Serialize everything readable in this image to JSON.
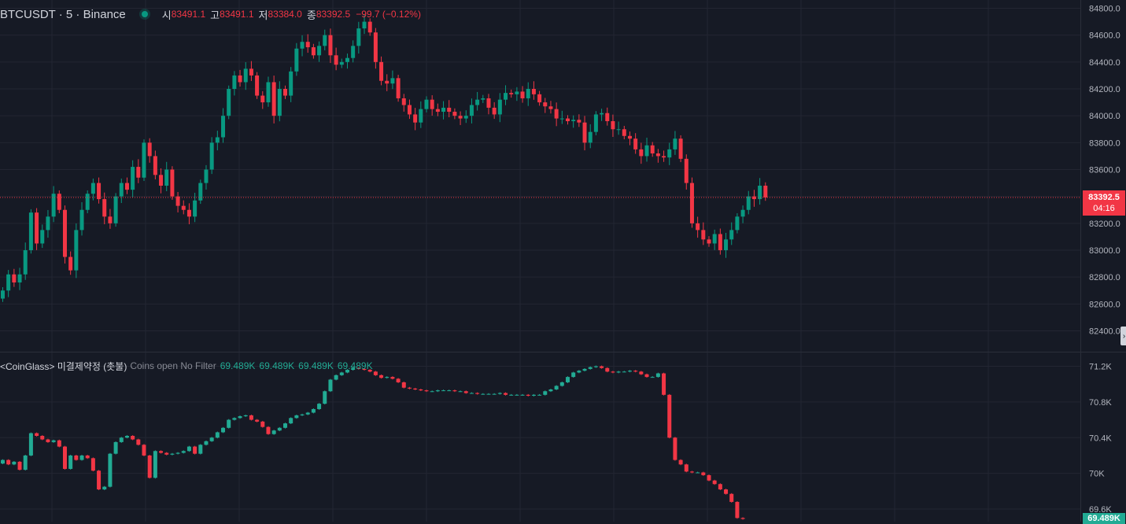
{
  "legend": {
    "symbol": "BTCUSDT · 5 · Binance",
    "open_label": "시",
    "open": "83491.1",
    "high_label": "고",
    "high": "83491.1",
    "low_label": "저",
    "low": "83384.0",
    "close_label": "종",
    "close": "83392.5",
    "change": "−99.7 (−0.12%)"
  },
  "indicator": {
    "name": "<CoinGlass> 미결제약정 (촛불)",
    "description": "Coins open No Filter",
    "values": [
      "69.489K",
      "69.489K",
      "69.489K",
      "69.489K"
    ]
  },
  "price_axis": {
    "ticks": [
      "84800.0",
      "84600.0",
      "84400.0",
      "84200.0",
      "84000.0",
      "83800.0",
      "83600.0",
      "83400.0",
      "83200.0",
      "83000.0",
      "82800.0",
      "82600.0",
      "82400.0"
    ],
    "current_price": "83392.5",
    "countdown": "04:16"
  },
  "oi_axis": {
    "ticks": [
      "71.2K",
      "70.8K",
      "70.4K",
      "70K",
      "69.6K"
    ],
    "current_value": "69.489K"
  },
  "colors": {
    "up": "#089981",
    "down": "#f23645",
    "background": "#161a25",
    "grid": "#232632",
    "oi_up": "#22ab94"
  },
  "chart_data": [
    {
      "type": "candlestick",
      "title": "BTCUSDT · 5 · Binance",
      "ylim": [
        82300,
        84850
      ],
      "yticks": [
        84800,
        84600,
        84400,
        84200,
        84000,
        83800,
        83600,
        83400,
        83200,
        83000,
        82800,
        82600,
        82400
      ],
      "last_price": 83392.5,
      "closes": [
        82700,
        82820,
        82760,
        82820,
        83000,
        83280,
        83050,
        83150,
        83250,
        83420,
        83300,
        82950,
        82850,
        83150,
        83300,
        83420,
        83500,
        83380,
        83250,
        83200,
        83400,
        83500,
        83450,
        83620,
        83540,
        83800,
        83700,
        83560,
        83480,
        83600,
        83400,
        83330,
        83300,
        83250,
        83370,
        83500,
        83600,
        83800,
        83840,
        84000,
        84200,
        84300,
        84250,
        84350,
        84300,
        84150,
        84100,
        84250,
        84000,
        84200,
        84150,
        84330,
        84500,
        84550,
        84510,
        84450,
        84520,
        84600,
        84450,
        84380,
        84400,
        84430,
        84520,
        84650,
        84700,
        84620,
        84400,
        84260,
        84240,
        84280,
        84130,
        84080,
        84010,
        83950,
        84050,
        84120,
        84050,
        84030,
        84060,
        84030,
        84000,
        83980,
        84000,
        84080,
        84120,
        84130,
        84060,
        84010,
        84120,
        84170,
        84160,
        84180,
        84130,
        84200,
        84160,
        84100,
        84070,
        84050,
        83980,
        83980,
        83960,
        83970,
        83950,
        83800,
        83880,
        84010,
        84020,
        83960,
        83900,
        83900,
        83850,
        83830,
        83750,
        83700,
        83780,
        83720,
        83700,
        83690,
        83750,
        83830,
        83680,
        83500,
        83200,
        83150,
        83080,
        83050,
        83120,
        83000,
        83080,
        83150,
        83250,
        83300,
        83400,
        83380,
        83480,
        83392.5
      ]
    },
    {
      "type": "candlestick",
      "title": "<CoinGlass> 미결제약정 (촛불)",
      "ylim": [
        69400,
        71300
      ],
      "yticks": [
        71200,
        70800,
        70400,
        70000,
        69600
      ],
      "last_value": 69489,
      "closes": [
        70150,
        70100,
        70130,
        70040,
        70200,
        70450,
        70420,
        70380,
        70350,
        70370,
        70300,
        70050,
        70200,
        70150,
        70200,
        70170,
        70030,
        69820,
        69850,
        70220,
        70350,
        70400,
        70420,
        70380,
        70320,
        70200,
        69950,
        70250,
        70230,
        70210,
        70220,
        70230,
        70250,
        70300,
        70220,
        70320,
        70360,
        70400,
        70460,
        70510,
        70600,
        70620,
        70640,
        70650,
        70600,
        70580,
        70520,
        70440,
        70480,
        70510,
        70560,
        70620,
        70650,
        70660,
        70680,
        70720,
        70780,
        70920,
        71050,
        71100,
        71130,
        71160,
        71180,
        71170,
        71160,
        71140,
        71100,
        71070,
        71080,
        71060,
        71020,
        70960,
        70950,
        70940,
        70930,
        70920,
        70920,
        70930,
        70930,
        70930,
        70920,
        70920,
        70900,
        70900,
        70890,
        70890,
        70890,
        70890,
        70900,
        70880,
        70880,
        70880,
        70880,
        70870,
        70880,
        70880,
        70920,
        70940,
        70980,
        71020,
        71080,
        71130,
        71150,
        71170,
        71190,
        71200,
        71180,
        71140,
        71130,
        71140,
        71140,
        71150,
        71140,
        71110,
        71080,
        71080,
        71120,
        70880,
        70400,
        70150,
        70100,
        70020,
        70010,
        70010,
        69980,
        69920,
        69880,
        69820,
        69770,
        69680,
        69500,
        69489
      ]
    }
  ]
}
